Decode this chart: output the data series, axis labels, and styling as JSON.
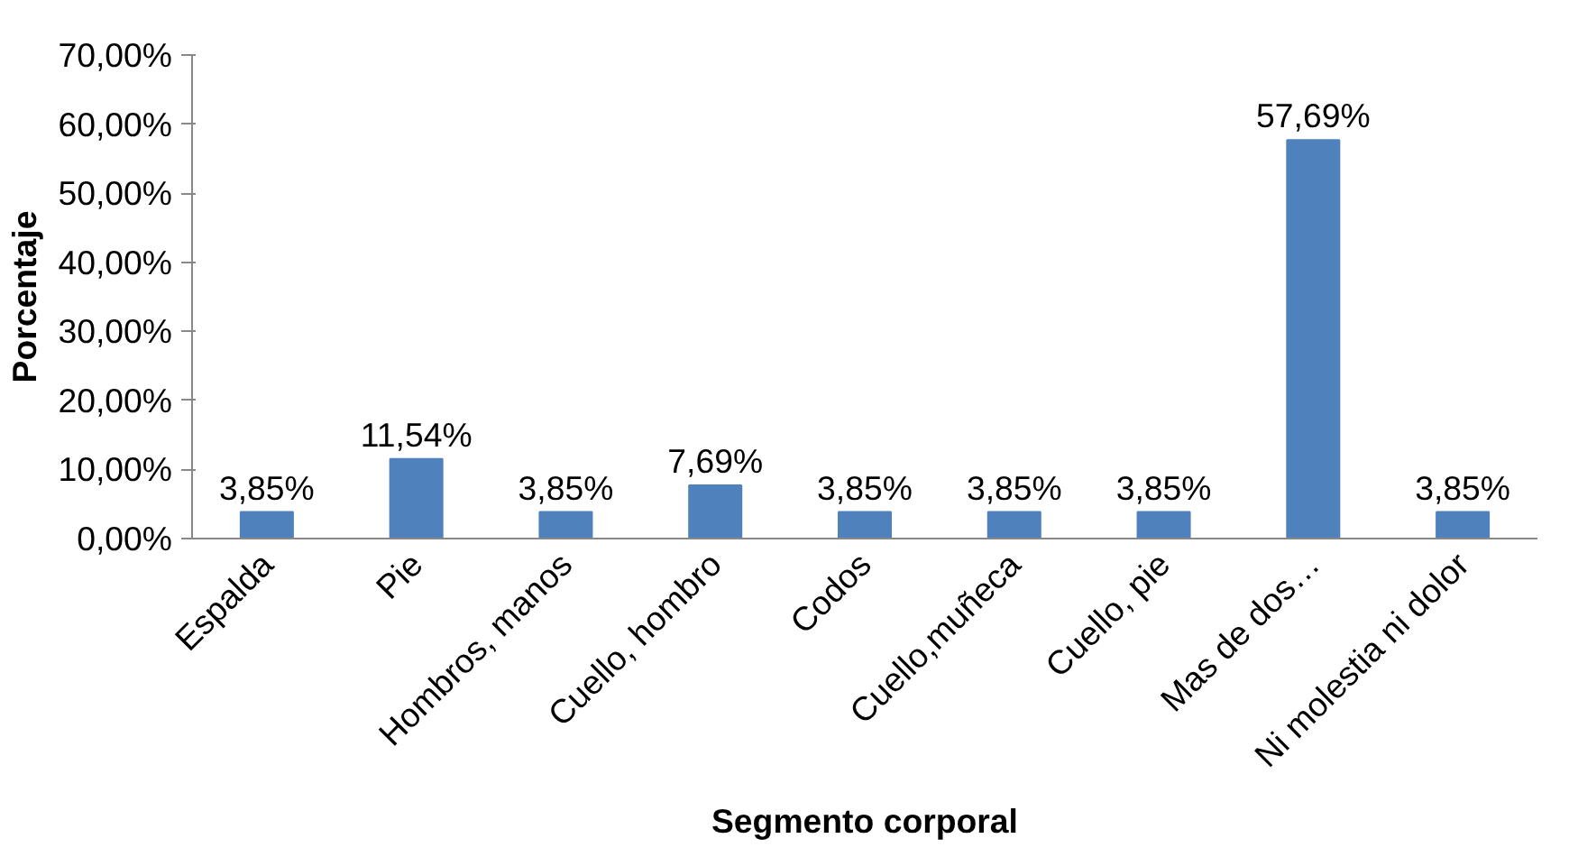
{
  "chart_data": {
    "type": "bar",
    "xlabel": "Segmento corporal",
    "ylabel": "Porcentaje",
    "categories": [
      "Espalda",
      "Pie",
      "Hombros, manos",
      "Cuello, hombro",
      "Codos",
      "Cuello,muñeca",
      "Cuello, pie",
      "Mas de dos…",
      "Ni molestia ni dolor"
    ],
    "values": [
      3.85,
      11.54,
      3.85,
      7.69,
      3.85,
      3.85,
      3.85,
      57.69,
      3.85
    ],
    "value_labels": [
      "3,85%",
      "11,54%",
      "3,85%",
      "7,69%",
      "3,85%",
      "3,85%",
      "3,85%",
      "57,69%",
      "3,85%"
    ],
    "color": "#4f81bd",
    "ylim": [
      0,
      70
    ],
    "yticks": [
      {
        "value": 0,
        "label": "0,00%"
      },
      {
        "value": 10,
        "label": "10,00%"
      },
      {
        "value": 20,
        "label": "20,00%"
      },
      {
        "value": 30,
        "label": "30,00%"
      },
      {
        "value": 40,
        "label": "40,00%"
      },
      {
        "value": 50,
        "label": "50,00%"
      },
      {
        "value": 60,
        "label": "60,00%"
      },
      {
        "value": 70,
        "label": "70,00%"
      }
    ],
    "grid": false
  }
}
